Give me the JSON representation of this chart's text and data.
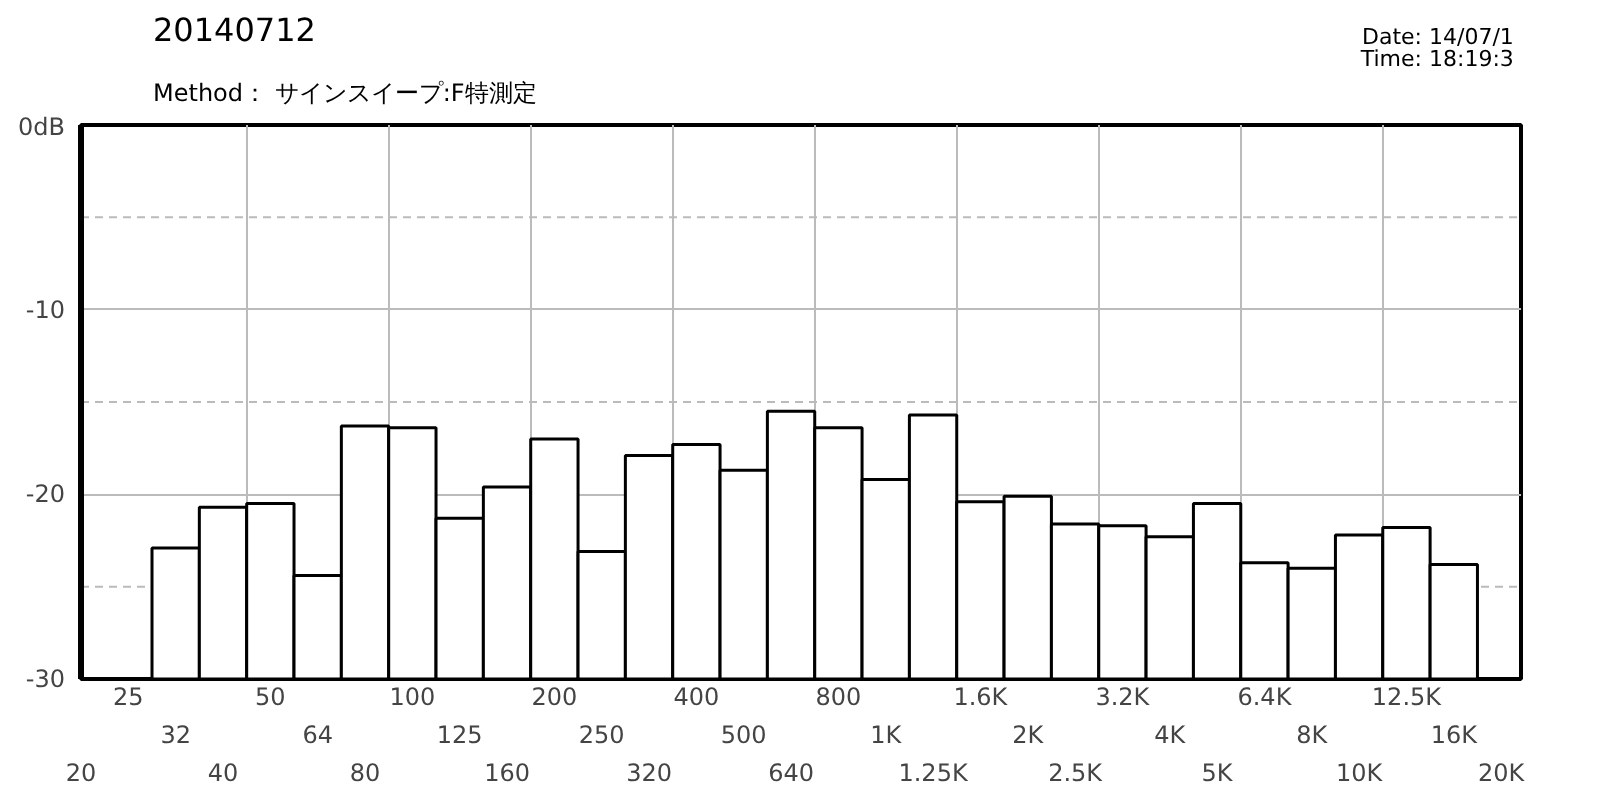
{
  "chart_data": {
    "type": "bar",
    "title": "20140712",
    "subtitle": "Method： サインスイープ:F特測定",
    "annotations": [
      "Date: 14/07/1",
      "Time: 18:19:3"
    ],
    "categories": [
      "20",
      "25",
      "32",
      "40",
      "50",
      "64",
      "80",
      "100",
      "125",
      "160",
      "200",
      "250",
      "320",
      "400",
      "500",
      "640",
      "800",
      "1K",
      "1.25K",
      "1.6K",
      "2K",
      "2.5K",
      "3.2K",
      "4K",
      "5K",
      "6.4K",
      "8K",
      "10K",
      "12.5K",
      "16K",
      "20K"
    ],
    "values": [
      null,
      null,
      7.1,
      9.3,
      9.5,
      5.6,
      13.7,
      13.6,
      8.7,
      10.4,
      13.0,
      6.9,
      12.1,
      12.7,
      11.3,
      14.5,
      13.6,
      10.8,
      14.3,
      9.6,
      9.9,
      8.4,
      8.3,
      7.7,
      9.5,
      6.3,
      6.0,
      7.8,
      8.2,
      6.2,
      null
    ],
    "base": [
      null,
      null,
      -30,
      -30,
      -30,
      -30,
      -30,
      -30,
      -30,
      -30,
      -30,
      -30,
      -30,
      -30,
      -30,
      -30,
      -30,
      -30,
      -30,
      -30,
      -30,
      -30,
      -30,
      -30,
      -30,
      -30,
      -30,
      -30,
      -30,
      -30,
      null
    ],
    "color": "#ffffff",
    "ylim": [
      -30,
      0
    ],
    "yticks": [
      {
        "value": 0,
        "label": "0dB"
      },
      {
        "value": -5,
        "label": null
      },
      -10,
      {
        "value": -15,
        "label": null
      },
      -20,
      {
        "value": -25,
        "label": null
      },
      -30
    ],
    "grid": true
  }
}
